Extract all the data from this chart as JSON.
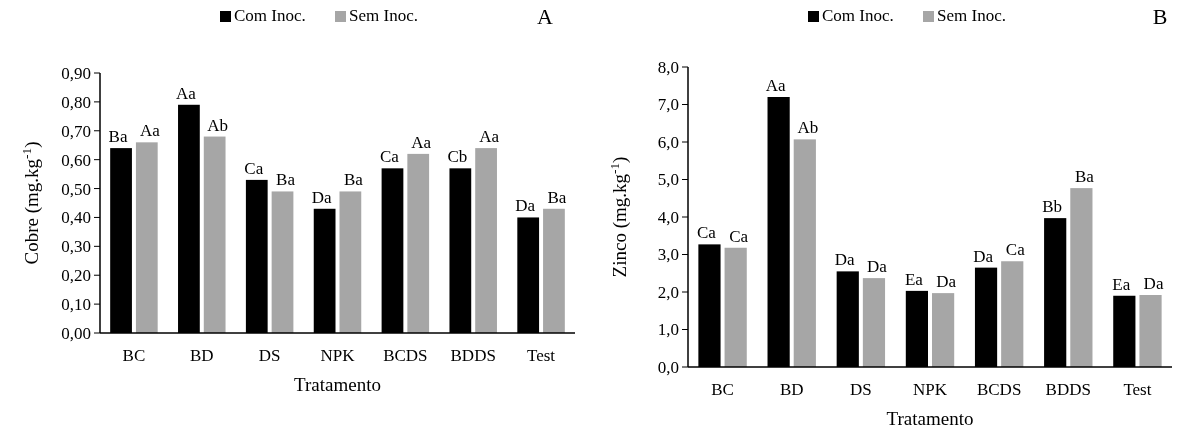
{
  "chart_data": [
    {
      "type": "bar",
      "title": "A",
      "xlabel": "Tratamento",
      "ylabel": "Cobre (mg.kg$^{-1}$)",
      "categories": [
        "BC",
        "BD",
        "DS",
        "NPK",
        "BCDS",
        "BDDS",
        "Test"
      ],
      "legend": "top",
      "ylim": [
        0,
        0.9
      ],
      "yticks": [
        {
          "value": 0,
          "label": "0,00"
        },
        {
          "value": 0.1,
          "label": "0,10"
        },
        {
          "value": 0.2,
          "label": "0,20"
        },
        {
          "value": 0.3,
          "label": "0,30"
        },
        {
          "value": 0.4,
          "label": "0,40"
        },
        {
          "value": 0.5,
          "label": "0,50"
        },
        {
          "value": 0.6,
          "label": "0,60"
        },
        {
          "value": 0.7,
          "label": "0,70"
        },
        {
          "value": 0.8,
          "label": "0,80"
        },
        {
          "value": 0.9,
          "label": "0,90"
        }
      ],
      "series": [
        {
          "name": "Com Inoc.",
          "color": "#000000",
          "values": [
            0.64,
            0.79,
            0.53,
            0.43,
            0.57,
            0.57,
            0.4
          ],
          "value_labels": [
            "Ba",
            "Aa",
            "Ca",
            "Da",
            "Ca",
            "Cb",
            "Da"
          ]
        },
        {
          "name": "Sem Inoc.",
          "color": "#a6a6a6",
          "values": [
            0.66,
            0.68,
            0.49,
            0.49,
            0.62,
            0.64,
            0.43
          ],
          "value_labels": [
            "Aa",
            "Ab",
            "Ba",
            "Ba",
            "Aa",
            "Aa",
            "Ba"
          ]
        }
      ]
    },
    {
      "type": "bar",
      "title": "B",
      "xlabel": "Tratamento",
      "ylabel": "Zinco (mg.kg$^{-1}$)",
      "categories": [
        "BC",
        "BD",
        "DS",
        "NPK",
        "BCDS",
        "BDDS",
        "Test"
      ],
      "legend": "top",
      "ylim": [
        0,
        8
      ],
      "yticks": [
        {
          "value": 0,
          "label": "0,0"
        },
        {
          "value": 1,
          "label": "1,0"
        },
        {
          "value": 2,
          "label": "2,0"
        },
        {
          "value": 3,
          "label": "3,0"
        },
        {
          "value": 4,
          "label": "4,0"
        },
        {
          "value": 5,
          "label": "5,0"
        },
        {
          "value": 6,
          "label": "6,0"
        },
        {
          "value": 7,
          "label": "7,0"
        },
        {
          "value": 8,
          "label": "8,0"
        }
      ],
      "series": [
        {
          "name": "Com Inoc.",
          "color": "#000000",
          "values": [
            3.27,
            7.2,
            2.55,
            2.03,
            2.65,
            3.97,
            1.9
          ],
          "value_labels": [
            "Ca",
            "Aa",
            "Da",
            "Ea",
            "Da",
            "Bb",
            "Ea"
          ]
        },
        {
          "name": "Sem Inoc.",
          "color": "#a6a6a6",
          "values": [
            3.18,
            6.07,
            2.37,
            1.97,
            2.82,
            4.77,
            1.92
          ],
          "value_labels": [
            "Ca",
            "Ab",
            "Da",
            "Da",
            "Ca",
            "Ba",
            "Da"
          ]
        }
      ]
    }
  ]
}
